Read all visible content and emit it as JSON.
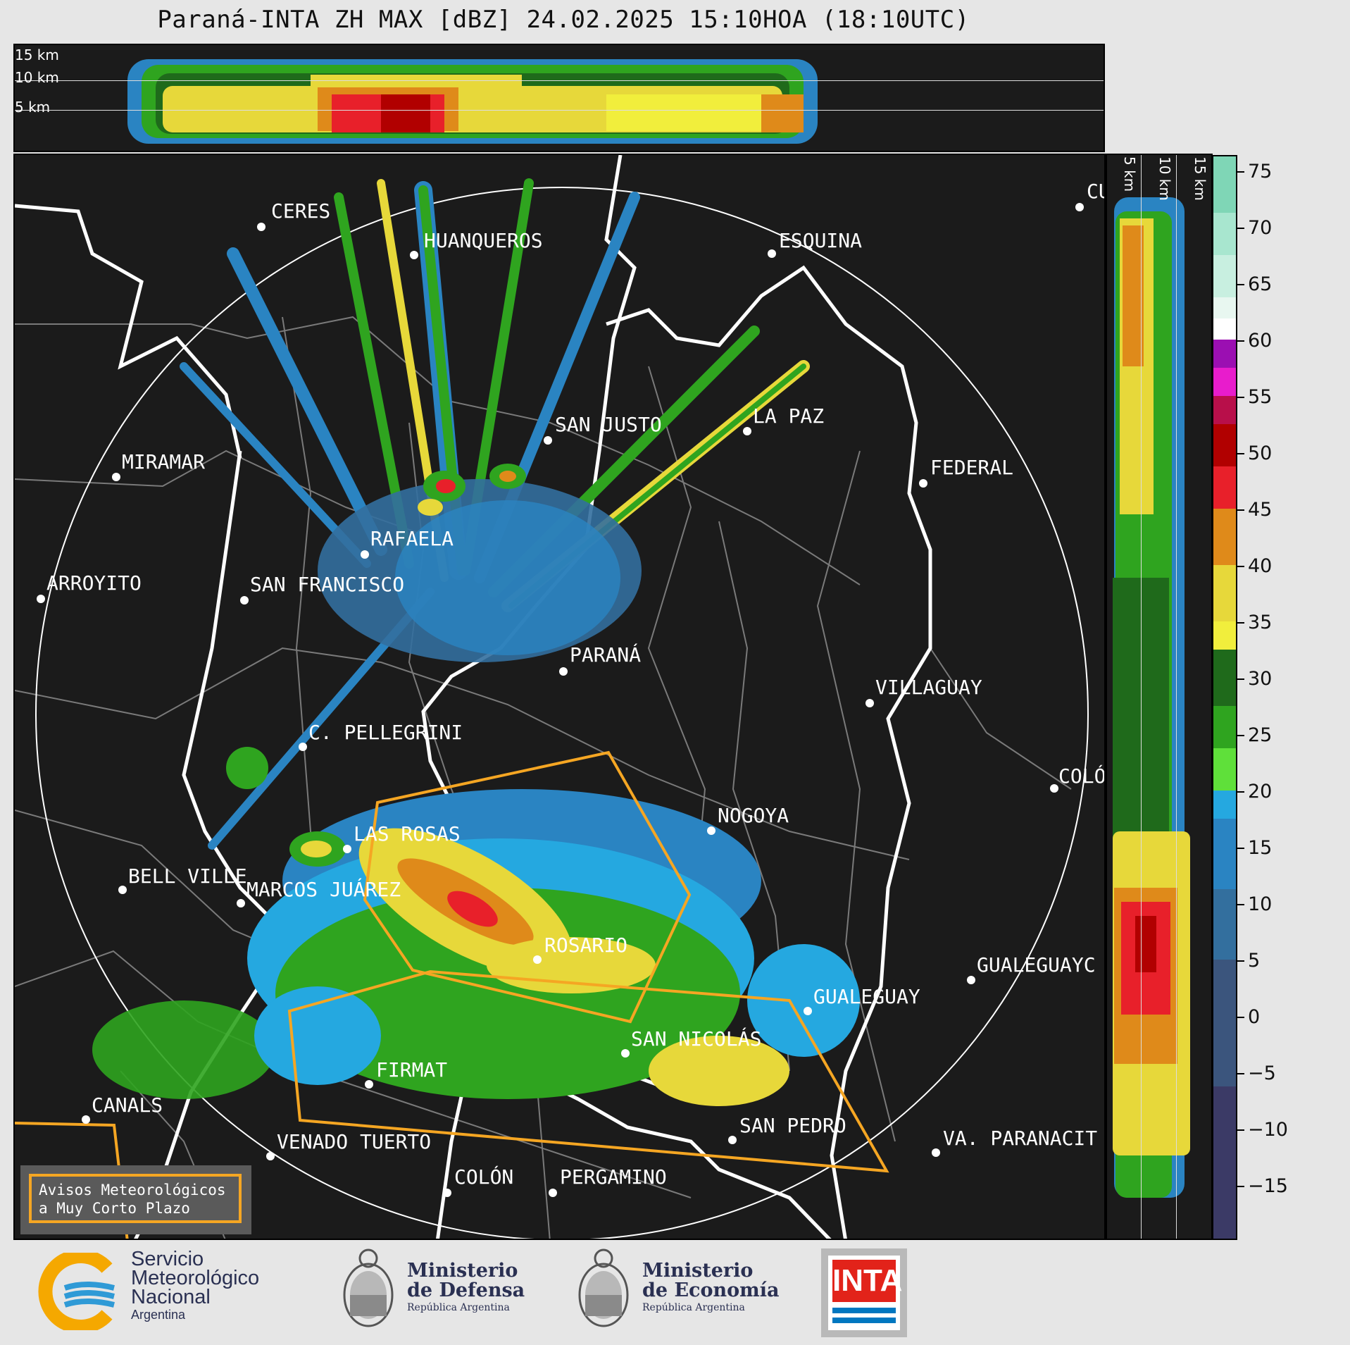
{
  "title": "Paraná-INTA ZH MAX [dBZ] 24.02.2025 15:10HOA (18:10UTC)",
  "top_strip": {
    "altitude_labels": [
      "15 km",
      "10 km",
      "5 km"
    ]
  },
  "right_strip": {
    "altitude_labels": [
      "5 km",
      "10 km",
      "15 km"
    ]
  },
  "colorbar": {
    "unit": "dBZ",
    "ticks": [
      "75",
      "70",
      "65",
      "60",
      "55",
      "50",
      "45",
      "40",
      "35",
      "30",
      "25",
      "20",
      "15",
      "10",
      "5",
      "0",
      "−5",
      "−10",
      "−15"
    ],
    "colors": {
      "sea_green": "#7fd6b6",
      "pale_green": "#c8efe0",
      "white": "#ffffff",
      "purple": "#9b0fb2",
      "magenta": "#e81ccc",
      "crimson": "#b80f4a",
      "dark_red": "#b10000",
      "red": "#e8202a",
      "orange": "#df8a1a",
      "yellow": "#e7d83a",
      "bright_yellow": "#f1ee3c",
      "dark_green": "#1f6a1b",
      "green": "#2fa41f",
      "light_green": "#5fe03a",
      "sky_blue": "#25a8e0",
      "blue": "#2a84c2",
      "steel_blue": "#336f9e",
      "slate": "#3b557d",
      "navy": "#3b3a66"
    }
  },
  "map": {
    "cities": [
      {
        "name": "CERES"
      },
      {
        "name": "HUANQUEROS"
      },
      {
        "name": "ESQUINA"
      },
      {
        "name": "CU"
      },
      {
        "name": "SAN JUSTO"
      },
      {
        "name": "LA PAZ"
      },
      {
        "name": "MIRAMAR"
      },
      {
        "name": "FEDERAL"
      },
      {
        "name": "RAFAELA"
      },
      {
        "name": "ARROYITO"
      },
      {
        "name": "SAN FRANCISCO"
      },
      {
        "name": "PARANÁ"
      },
      {
        "name": "VILLAGUAY"
      },
      {
        "name": "C. PELLEGRINI"
      },
      {
        "name": "COLÓ"
      },
      {
        "name": "NOGOYA"
      },
      {
        "name": "LAS ROSAS"
      },
      {
        "name": "BELL VILLE"
      },
      {
        "name": "MARCOS JUÁREZ"
      },
      {
        "name": "ROSARIO"
      },
      {
        "name": "GUALEGUAYC"
      },
      {
        "name": "GUALEGUAY"
      },
      {
        "name": "SAN NICOLÁS"
      },
      {
        "name": "FIRMAT"
      },
      {
        "name": "CANALS"
      },
      {
        "name": "SAN PEDRO"
      },
      {
        "name": "VENADO TUERTO"
      },
      {
        "name": "VA. PARANACIT"
      },
      {
        "name": "COLÓN"
      },
      {
        "name": "PERGAMINO"
      }
    ],
    "warning_box": {
      "line1": "Avisos Meteorológicos",
      "line2": "a Muy Corto Plazo"
    }
  },
  "logos": {
    "smn": {
      "line1": "Servicio",
      "line2": "Meteorológico",
      "line3": "Nacional",
      "line4": "Argentina"
    },
    "defensa": {
      "line1": "Ministerio",
      "line2": "de Defensa",
      "line3": "República Argentina"
    },
    "economia": {
      "line1": "Ministerio",
      "line2": "de Economía",
      "line3": "República Argentina"
    },
    "inta": {
      "text": "INTA"
    }
  }
}
